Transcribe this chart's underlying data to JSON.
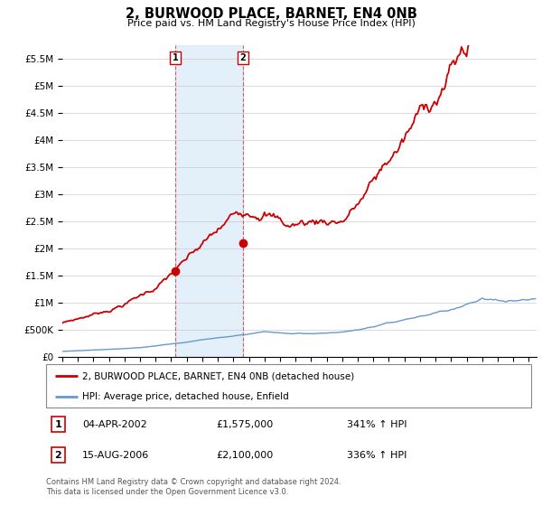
{
  "title": "2, BURWOOD PLACE, BARNET, EN4 0NB",
  "subtitle": "Price paid vs. HM Land Registry's House Price Index (HPI)",
  "ylim": [
    0,
    5750000
  ],
  "xlim_start": 1995.0,
  "xlim_end": 2025.5,
  "sale1_date": 2002.26,
  "sale1_price": 1575000,
  "sale1_label": "1",
  "sale1_text": "04-APR-2002",
  "sale1_price_text": "£1,575,000",
  "sale1_hpi_text": "341% ↑ HPI",
  "sale2_date": 2006.62,
  "sale2_price": 2100000,
  "sale2_label": "2",
  "sale2_text": "15-AUG-2006",
  "sale2_price_text": "£2,100,000",
  "sale2_hpi_text": "336% ↑ HPI",
  "legend_property": "2, BURWOOD PLACE, BARNET, EN4 0NB (detached house)",
  "legend_hpi": "HPI: Average price, detached house, Enfield",
  "footnote": "Contains HM Land Registry data © Crown copyright and database right 2024.\nThis data is licensed under the Open Government Licence v3.0.",
  "property_color": "#cc0000",
  "hpi_color": "#6699cc",
  "shade_color": "#cce4f7",
  "ytick_labels": [
    "£0",
    "£500K",
    "£1M",
    "£1.5M",
    "£2M",
    "£2.5M",
    "£3M",
    "£3.5M",
    "£4M",
    "£4.5M",
    "£5M",
    "£5.5M"
  ],
  "yticks": [
    0,
    500000,
    1000000,
    1500000,
    2000000,
    2500000,
    3000000,
    3500000,
    4000000,
    4500000,
    5000000,
    5500000
  ]
}
